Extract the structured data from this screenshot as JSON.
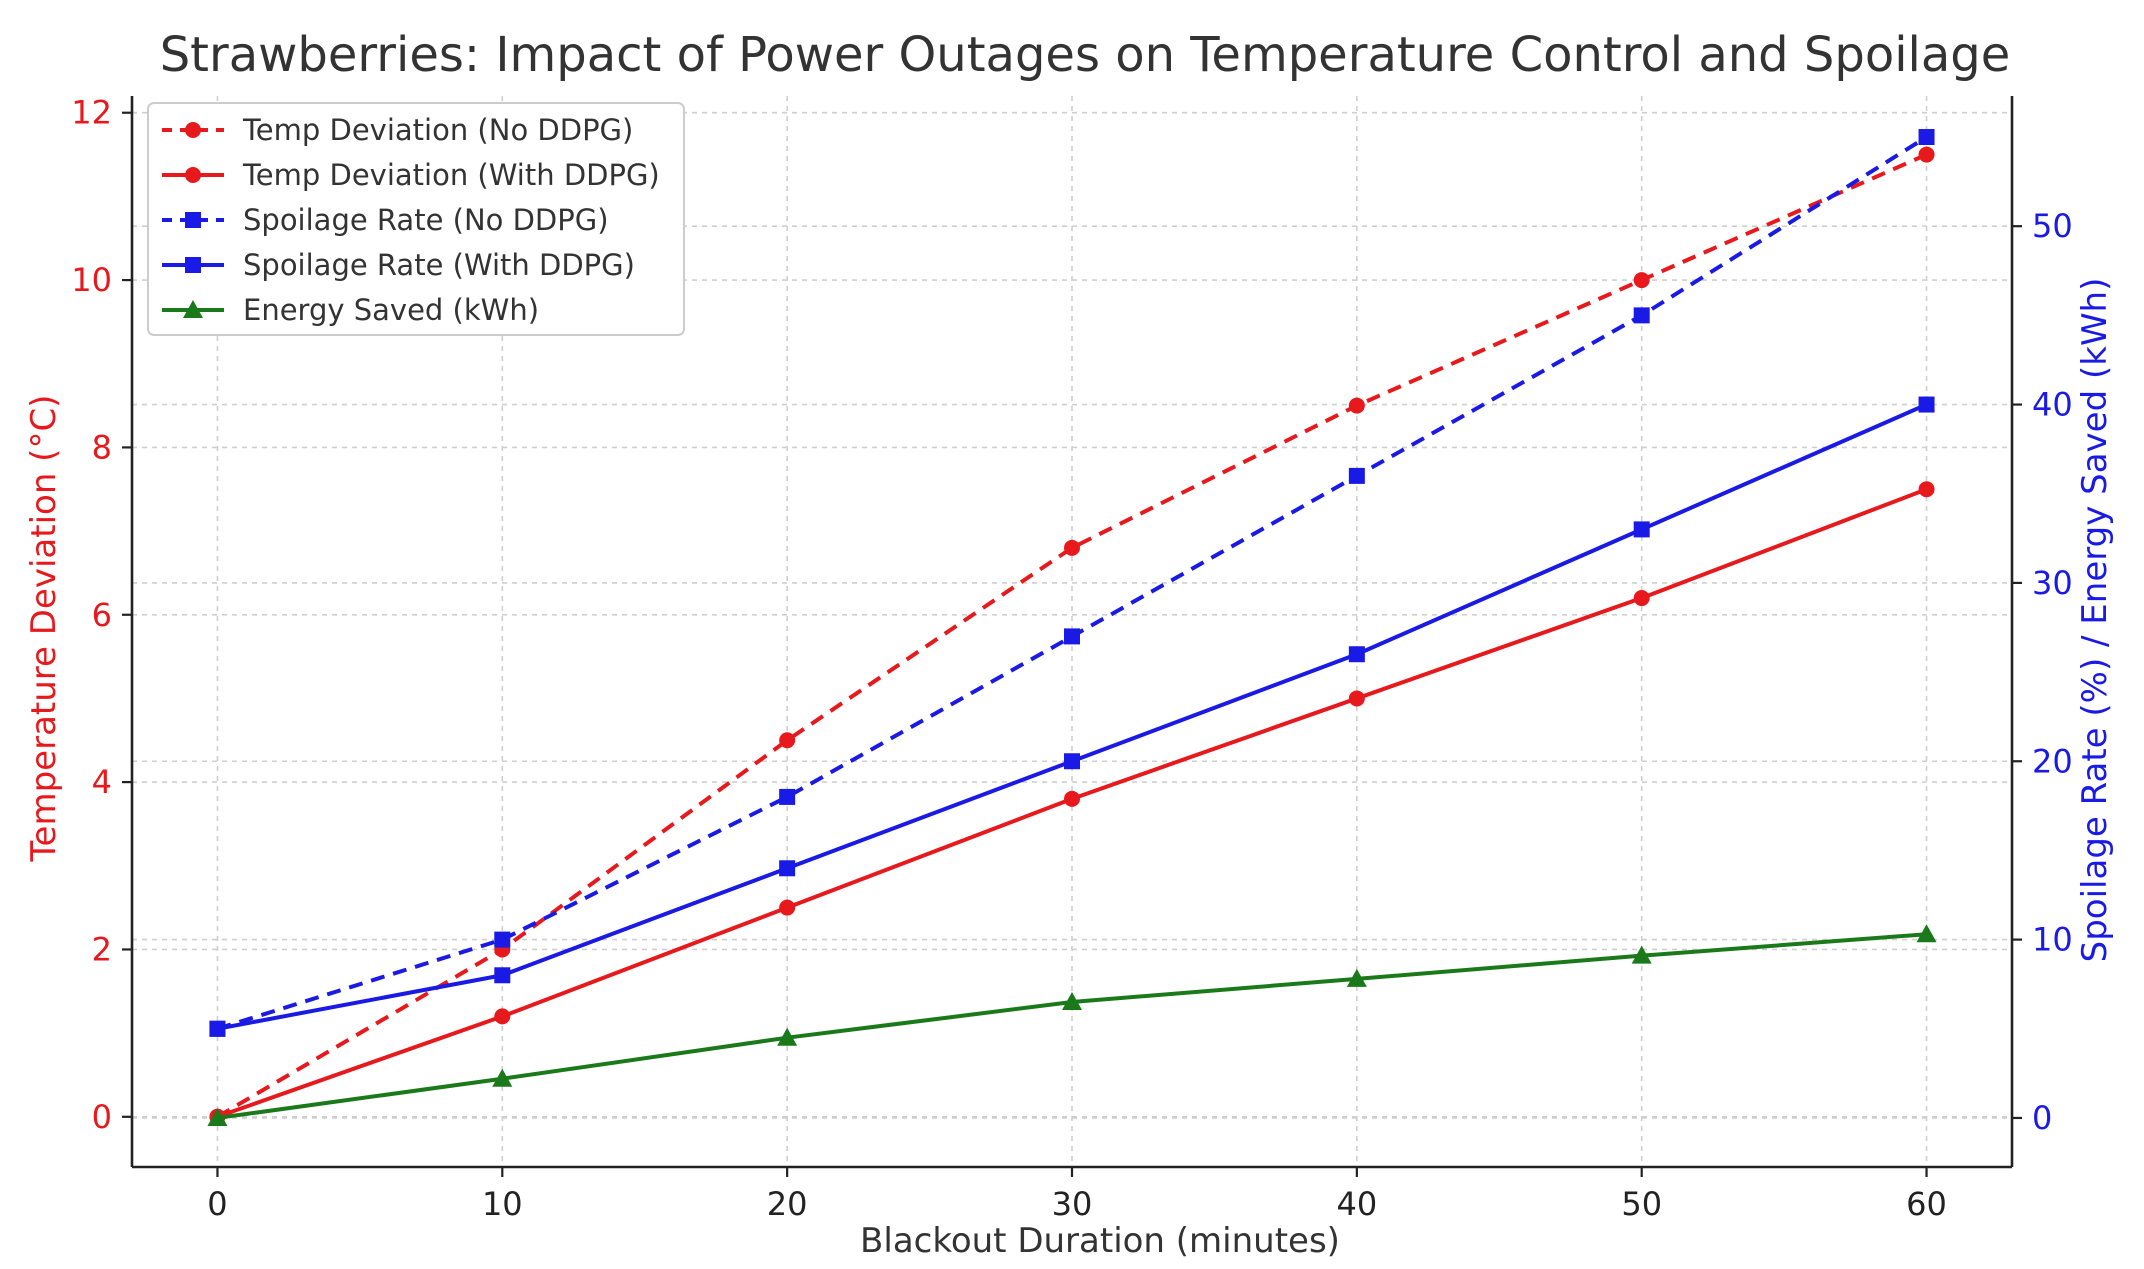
{
  "chart_data": {
    "type": "line",
    "title": "Strawberries: Impact of Power Outages on Temperature Control and Spoilage",
    "xlabel": "Blackout Duration (minutes)",
    "ylabel_left": "Temperature Deviation (°C)",
    "ylabel_right": "Spoilage Rate (%) / Energy Saved (kWh)",
    "x": [
      0,
      10,
      20,
      30,
      40,
      50,
      60
    ],
    "xlim": [
      -3,
      63
    ],
    "ylim_left": [
      -0.6,
      12.2
    ],
    "ylim_right": [
      -2.75,
      57.3
    ],
    "x_ticks": [
      0,
      10,
      20,
      30,
      40,
      50,
      60
    ],
    "x_tick_labels": [
      "0",
      "10",
      "20",
      "30",
      "40",
      "50",
      "60"
    ],
    "y_left_ticks": [
      0,
      2,
      4,
      6,
      8,
      10,
      12
    ],
    "y_left_tick_labels": [
      "0",
      "2",
      "4",
      "6",
      "8",
      "10",
      "12"
    ],
    "y_right_ticks": [
      0,
      10,
      20,
      30,
      40,
      50
    ],
    "y_right_tick_labels": [
      "0",
      "10",
      "20",
      "30",
      "40",
      "50"
    ],
    "grid": true,
    "legend_position": "top-left",
    "colors": {
      "left_axis": "#e8191c",
      "right_axis": "#1a1ae6",
      "temp": "#e8191c",
      "spoilage": "#1a1ae6",
      "energy": "#1a7a1a"
    },
    "series": [
      {
        "name": "Temp Deviation (No DDPG)",
        "axis": "left",
        "color": "#e8191c",
        "line_style": "dashed",
        "marker": "circle",
        "values": [
          0,
          2,
          4.5,
          6.8,
          8.5,
          10,
          11.5
        ]
      },
      {
        "name": "Temp Deviation (With DDPG)",
        "axis": "left",
        "color": "#e8191c",
        "line_style": "solid",
        "marker": "circle",
        "values": [
          0,
          1.2,
          2.5,
          3.8,
          5,
          6.2,
          7.5
        ]
      },
      {
        "name": "Spoilage Rate (No DDPG)",
        "axis": "right",
        "color": "#1a1ae6",
        "line_style": "dashed",
        "marker": "square",
        "values": [
          5,
          10,
          18,
          27,
          36,
          45,
          55
        ]
      },
      {
        "name": "Spoilage Rate (With DDPG)",
        "axis": "right",
        "color": "#1a1ae6",
        "line_style": "solid",
        "marker": "square",
        "values": [
          5,
          8,
          14,
          20,
          26,
          33,
          40
        ]
      },
      {
        "name": "Energy Saved (kWh)",
        "axis": "right",
        "color": "#1a7a1a",
        "line_style": "solid",
        "marker": "triangle",
        "values": [
          0,
          2.2,
          4.5,
          6.5,
          7.8,
          9.1,
          10.3
        ]
      }
    ]
  }
}
